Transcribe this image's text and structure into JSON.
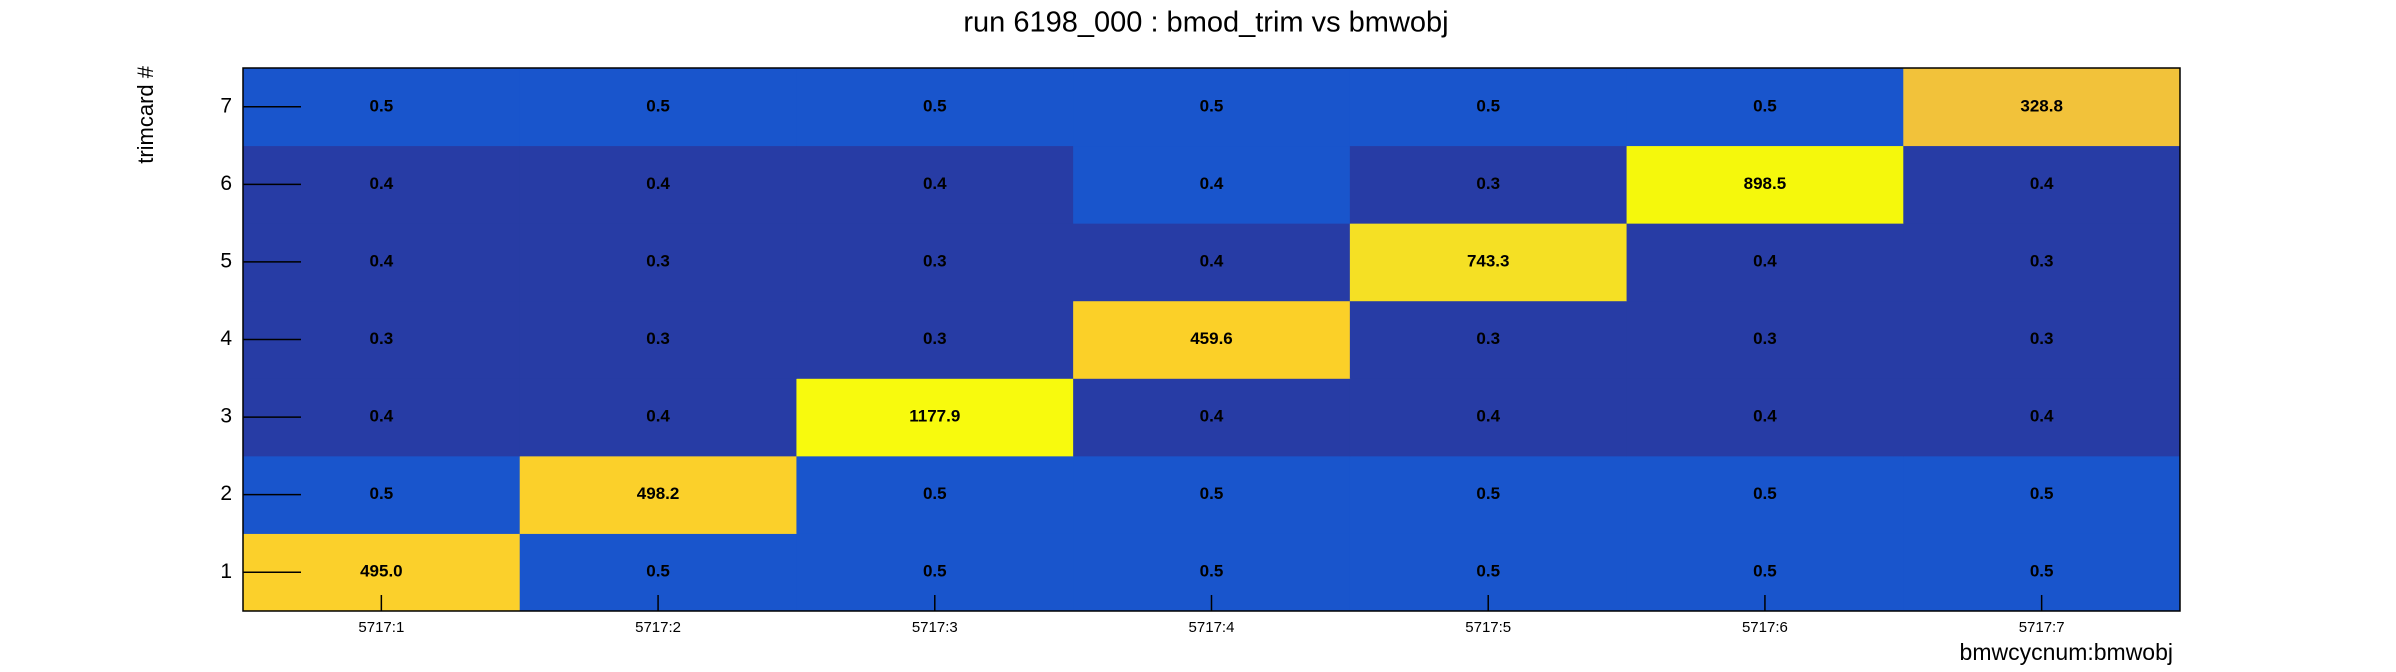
{
  "chart_data": {
    "type": "heatmap",
    "title": "run 6198_000 : bmod_trim vs bmwobj",
    "x_label": "bmwcycnum:bmwobj",
    "y_label": "trimcard #",
    "x_categories": [
      "5717:1",
      "5717:2",
      "5717:3",
      "5717:4",
      "5717:5",
      "5717:6",
      "5717:7"
    ],
    "y_categories": [
      "1",
      "2",
      "3",
      "4",
      "5",
      "6",
      "7"
    ],
    "values": [
      [
        495.0,
        0.5,
        0.5,
        0.5,
        0.5,
        0.5,
        0.5
      ],
      [
        0.5,
        498.2,
        0.5,
        0.5,
        0.5,
        0.5,
        0.5
      ],
      [
        0.4,
        0.4,
        1177.9,
        0.4,
        0.4,
        0.4,
        0.4
      ],
      [
        0.3,
        0.3,
        0.3,
        459.6,
        0.3,
        0.3,
        0.3
      ],
      [
        0.4,
        0.3,
        0.3,
        0.4,
        743.3,
        0.4,
        0.3
      ],
      [
        0.4,
        0.4,
        0.4,
        0.4,
        0.3,
        898.5,
        0.4
      ],
      [
        0.5,
        0.5,
        0.5,
        0.5,
        0.5,
        0.5,
        328.8
      ]
    ],
    "value_labels": [
      [
        "495.0",
        "0.5",
        "0.5",
        "0.5",
        "0.5",
        "0.5",
        "0.5"
      ],
      [
        "0.5",
        "498.2",
        "0.5",
        "0.5",
        "0.5",
        "0.5",
        "0.5"
      ],
      [
        "0.4",
        "0.4",
        "1177.9",
        "0.4",
        "0.4",
        "0.4",
        "0.4"
      ],
      [
        "0.3",
        "0.3",
        "0.3",
        "459.6",
        "0.3",
        "0.3",
        "0.3"
      ],
      [
        "0.4",
        "0.3",
        "0.3",
        "0.4",
        "743.3",
        "0.4",
        "0.3"
      ],
      [
        "0.4",
        "0.4",
        "0.4",
        "0.4",
        "0.3",
        "898.5",
        "0.4"
      ],
      [
        "0.5",
        "0.5",
        "0.5",
        "0.5",
        "0.5",
        "0.5",
        "328.8"
      ]
    ],
    "colors": [
      [
        "#fbd02b",
        "#1955cc",
        "#1955cc",
        "#1955cc",
        "#1955cc",
        "#1955cc",
        "#1955cc"
      ],
      [
        "#1955cc",
        "#fbd02a",
        "#1955cc",
        "#1955cc",
        "#1955cc",
        "#1955cc",
        "#1955cc"
      ],
      [
        "#273ca5",
        "#273ca5",
        "#f8fa0d",
        "#273ca5",
        "#273ca5",
        "#273ca5",
        "#273ca5"
      ],
      [
        "#273ca5",
        "#273ca5",
        "#273ca5",
        "#fbd028",
        "#273ca5",
        "#273ca5",
        "#273ca5"
      ],
      [
        "#273ca5",
        "#273ca5",
        "#273ca5",
        "#273ca5",
        "#f5e024",
        "#273ca5",
        "#273ca5"
      ],
      [
        "#273ca5",
        "#273ca5",
        "#273ca5",
        "#1955cc",
        "#273ca5",
        "#f5f80c",
        "#273ca5"
      ],
      [
        "#1955cc",
        "#1955cc",
        "#1955cc",
        "#1955cc",
        "#1955cc",
        "#1955cc",
        "#f2c23a"
      ]
    ]
  }
}
